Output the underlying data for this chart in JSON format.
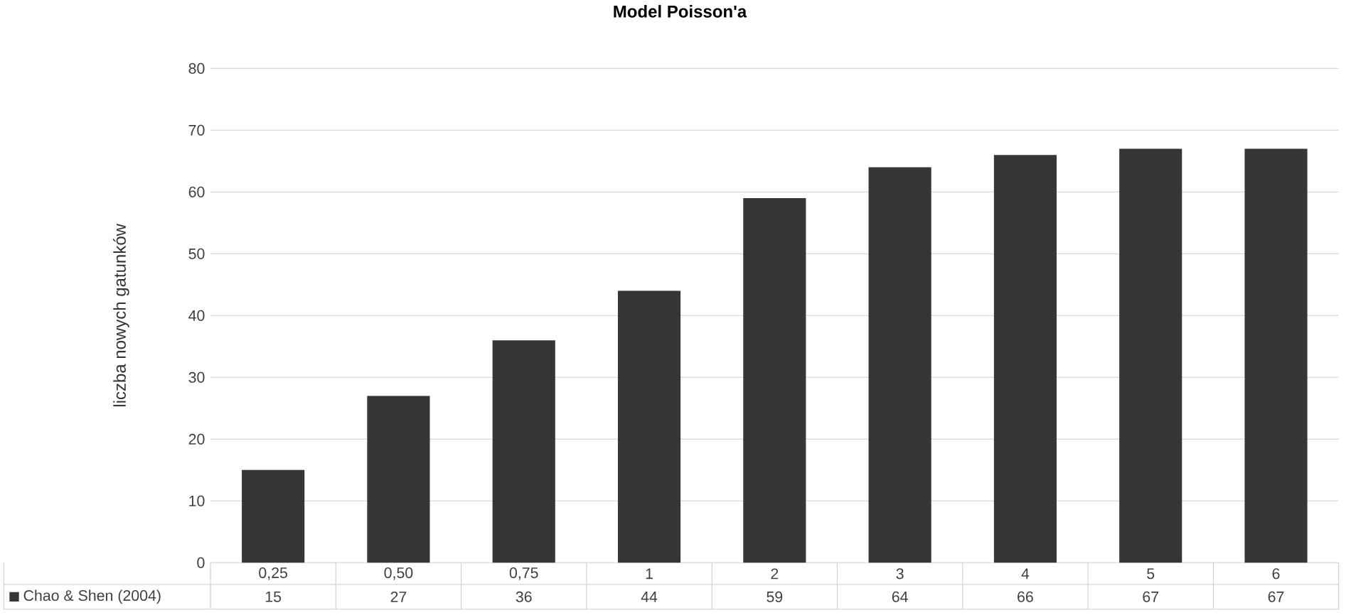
{
  "chart_data": {
    "type": "bar",
    "title": "Model Poisson'a",
    "ylabel": "liczba nowych gatunków",
    "categories": [
      "0,25",
      "0,50",
      "0,75",
      "1",
      "2",
      "3",
      "4",
      "5",
      "6"
    ],
    "series": [
      {
        "name": "Chao & Shen (2004)",
        "color": "#363636",
        "values": [
          15,
          27,
          36,
          44,
          59,
          64,
          66,
          67,
          67
        ]
      }
    ],
    "ylim": [
      0,
      80
    ],
    "yticks": [
      0,
      10,
      20,
      30,
      40,
      50,
      60,
      70,
      80
    ],
    "grid": "y",
    "legend": "bottom",
    "data_labels": true
  }
}
